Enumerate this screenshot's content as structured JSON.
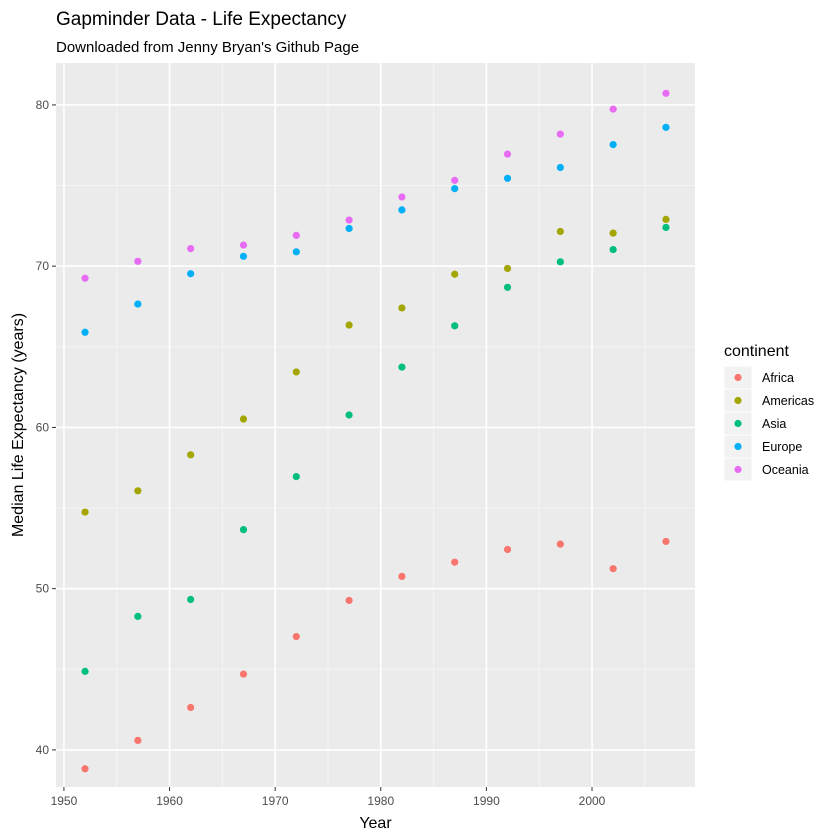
{
  "chart_data": {
    "type": "scatter",
    "title": "Gapminder Data - Life Expectancy",
    "subtitle": "Downloaded from Jenny Bryan's Github Page",
    "xlabel": "Year",
    "ylabel": "Median Life Expectancy (years)",
    "x": [
      1952,
      1957,
      1962,
      1967,
      1972,
      1977,
      1982,
      1987,
      1992,
      1997,
      2002,
      2007
    ],
    "xlim": [
      1949.25,
      2009.75
    ],
    "ylim": [
      37.7,
      82.6
    ],
    "x_ticks": [
      1950,
      1960,
      1970,
      1980,
      1990,
      2000
    ],
    "y_ticks": [
      40,
      50,
      60,
      70,
      80
    ],
    "grid": true,
    "legend": {
      "title": "continent",
      "position": "right"
    },
    "series": [
      {
        "name": "Africa",
        "color": "#F8766D",
        "values": [
          38.83,
          40.59,
          42.63,
          44.7,
          47.03,
          49.27,
          50.76,
          51.64,
          52.43,
          52.76,
          51.24,
          52.93
        ]
      },
      {
        "name": "Americas",
        "color": "#A3A500",
        "values": [
          54.75,
          56.07,
          58.3,
          60.52,
          63.44,
          66.35,
          67.41,
          69.5,
          69.86,
          72.15,
          72.05,
          72.9
        ]
      },
      {
        "name": "Asia",
        "color": "#00BF7D",
        "values": [
          44.87,
          48.28,
          49.33,
          53.66,
          56.95,
          60.77,
          63.74,
          66.3,
          68.69,
          70.27,
          71.03,
          72.4
        ]
      },
      {
        "name": "Europe",
        "color": "#00B0F6",
        "values": [
          65.9,
          67.65,
          69.53,
          70.61,
          70.89,
          72.34,
          73.49,
          74.81,
          75.45,
          76.12,
          77.54,
          78.61
        ]
      },
      {
        "name": "Oceania",
        "color": "#E76BF3",
        "values": [
          69.25,
          70.3,
          71.09,
          71.31,
          71.91,
          72.86,
          74.29,
          75.32,
          76.95,
          78.19,
          79.74,
          80.72
        ]
      }
    ]
  }
}
